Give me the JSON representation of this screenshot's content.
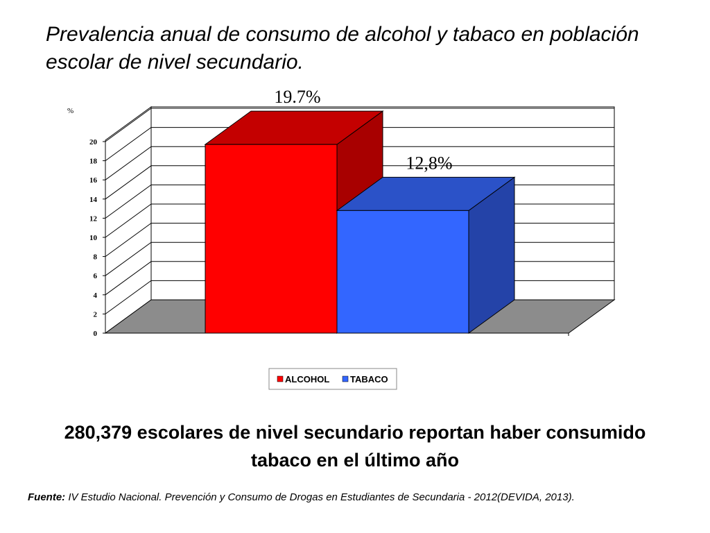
{
  "title": "Prevalencia anual de consumo de alcohol y tabaco en población escolar de nivel secundario.",
  "summary": "280,379 escolares de nivel secundario reportan haber consumido tabaco en el último año",
  "source": {
    "label": "Fuente:",
    "text": " IV Estudio Nacional. Prevención y Consumo de Drogas en Estudiantes de Secundaria - 2012(DEVIDA, 2013)."
  },
  "chart_data": {
    "type": "bar",
    "title": "",
    "xlabel": "",
    "ylabel": "%",
    "ylim": [
      0,
      20
    ],
    "yticks": [
      "0",
      "2",
      "4",
      "6",
      "8",
      "10",
      "12",
      "14",
      "16",
      "18",
      "20"
    ],
    "categories": [
      "ALCOHOL",
      "TABACO"
    ],
    "values": [
      19.7,
      12.8
    ],
    "data_labels": [
      "19.7%",
      "12,8%"
    ],
    "colors": {
      "ALCOHOL": {
        "front": "#ff0000",
        "top": "#c40000",
        "side": "#a80000"
      },
      "TABACO": {
        "front": "#3366ff",
        "top": "#2b52c8",
        "side": "#2443a8"
      }
    },
    "floor_color": "#8c8c8c",
    "legend": [
      "ALCOHOL",
      "TABACO"
    ],
    "legend_position": "bottom",
    "grid": true
  }
}
